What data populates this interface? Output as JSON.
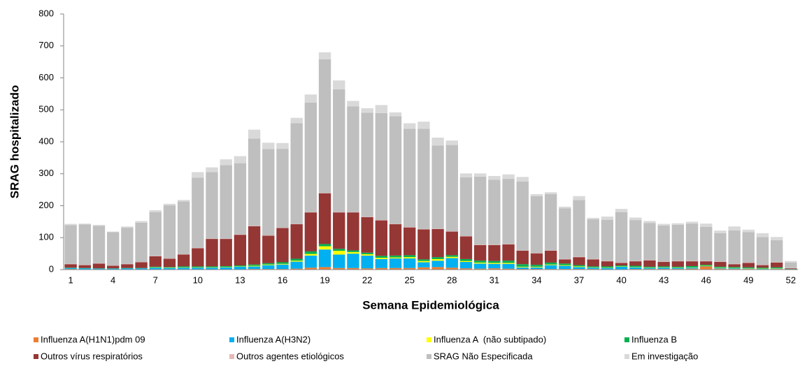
{
  "chart_data": {
    "type": "stacked-bar",
    "x_label": "Semana Epidemiológica",
    "y_label": "SRAG hospitalizado",
    "categories": [
      1,
      null,
      null,
      4,
      null,
      null,
      7,
      null,
      null,
      10,
      null,
      null,
      13,
      null,
      null,
      16,
      null,
      null,
      19,
      null,
      null,
      22,
      null,
      null,
      25,
      null,
      null,
      28,
      null,
      null,
      31,
      null,
      null,
      34,
      null,
      null,
      37,
      null,
      null,
      40,
      null,
      null,
      43,
      null,
      null,
      46,
      null,
      null,
      49,
      null,
      null,
      52
    ],
    "ylim": [
      0,
      800
    ],
    "yticks": [
      0,
      100,
      200,
      300,
      400,
      500,
      600,
      700,
      800
    ],
    "series": [
      {
        "name": "Influenza A(H1N1)pdm 09",
        "color": "#ed7d31",
        "values": [
          2,
          1,
          1,
          1,
          1,
          1,
          1,
          1,
          1,
          1,
          1,
          1,
          1,
          2,
          2,
          2,
          3,
          6,
          8,
          5,
          5,
          4,
          5,
          5,
          5,
          7,
          8,
          6,
          4,
          3,
          4,
          3,
          2,
          2,
          2,
          2,
          2,
          2,
          1,
          1,
          2,
          2,
          2,
          2,
          3,
          10,
          3,
          2,
          2,
          1,
          2,
          1
        ]
      },
      {
        "name": "Influenza A(H3N2)",
        "color": "#00b0f0",
        "values": [
          3,
          3,
          2,
          2,
          3,
          3,
          5,
          4,
          5,
          5,
          5,
          6,
          8,
          8,
          12,
          14,
          22,
          38,
          55,
          42,
          45,
          40,
          28,
          30,
          30,
          16,
          20,
          30,
          20,
          16,
          14,
          15,
          5,
          5,
          12,
          10,
          6,
          4,
          4,
          8,
          5,
          3,
          4,
          3,
          3,
          1,
          2,
          2,
          1,
          1,
          1,
          0
        ]
      },
      {
        "name": "Influenza A  (não subtipado)",
        "color": "#ffff00",
        "values": [
          0,
          0,
          0,
          0,
          0,
          0,
          1,
          1,
          1,
          1,
          1,
          1,
          1,
          2,
          2,
          2,
          3,
          5,
          10,
          12,
          5,
          4,
          4,
          3,
          4,
          4,
          5,
          4,
          3,
          3,
          3,
          3,
          2,
          2,
          2,
          2,
          2,
          1,
          1,
          1,
          1,
          1,
          1,
          1,
          1,
          1,
          1,
          1,
          1,
          1,
          1,
          0
        ]
      },
      {
        "name": "Influenza B",
        "color": "#00b050",
        "values": [
          1,
          1,
          1,
          1,
          1,
          1,
          2,
          2,
          3,
          3,
          3,
          3,
          3,
          4,
          4,
          5,
          6,
          8,
          7,
          6,
          5,
          5,
          6,
          6,
          6,
          5,
          6,
          5,
          6,
          6,
          6,
          7,
          8,
          6,
          6,
          5,
          4,
          3,
          4,
          3,
          4,
          3,
          3,
          3,
          4,
          3,
          3,
          3,
          3,
          3,
          3,
          1
        ]
      },
      {
        "name": "Outros vírus respiratórios",
        "color": "#953735",
        "values": [
          11,
          9,
          15,
          8,
          12,
          18,
          33,
          26,
          37,
          57,
          86,
          85,
          96,
          120,
          86,
          107,
          108,
          122,
          159,
          114,
          119,
          111,
          111,
          98,
          87,
          94,
          88,
          74,
          71,
          49,
          50,
          51,
          42,
          36,
          37,
          13,
          25,
          22,
          16,
          8,
          14,
          20,
          14,
          17,
          15,
          11,
          15,
          9,
          14,
          8,
          15,
          2
        ]
      },
      {
        "name": "Outros agentes etiológicos",
        "color": "#e6b9b8",
        "values": [
          1,
          1,
          1,
          1,
          1,
          1,
          1,
          1,
          1,
          1,
          1,
          1,
          1,
          1,
          1,
          1,
          1,
          1,
          1,
          1,
          1,
          1,
          1,
          1,
          1,
          1,
          1,
          1,
          1,
          1,
          1,
          1,
          1,
          1,
          1,
          1,
          1,
          1,
          1,
          1,
          1,
          1,
          1,
          1,
          1,
          1,
          1,
          1,
          1,
          1,
          1,
          1
        ]
      },
      {
        "name": "SRAG Não Especificada",
        "color": "#bfbfbf",
        "values": [
          121,
          126,
          117,
          104,
          113,
          123,
          137,
          166,
          165,
          220,
          208,
          230,
          223,
          273,
          270,
          247,
          315,
          343,
          418,
          384,
          331,
          326,
          335,
          337,
          308,
          314,
          260,
          270,
          184,
          213,
          203,
          204,
          216,
          178,
          176,
          159,
          178,
          125,
          129,
          158,
          128,
          116,
          113,
          113,
          117,
          107,
          89,
          105,
          95,
          87,
          69,
          17
        ]
      },
      {
        "name": "Em investigação",
        "color": "#d9d9d9",
        "values": [
          4,
          3,
          3,
          2,
          4,
          5,
          6,
          5,
          5,
          17,
          15,
          18,
          22,
          28,
          20,
          18,
          17,
          25,
          22,
          28,
          17,
          14,
          25,
          12,
          17,
          22,
          25,
          14,
          12,
          10,
          12,
          14,
          14,
          6,
          6,
          5,
          12,
          4,
          10,
          10,
          8,
          6,
          5,
          5,
          6,
          10,
          8,
          12,
          8,
          12,
          10,
          5
        ]
      }
    ]
  }
}
